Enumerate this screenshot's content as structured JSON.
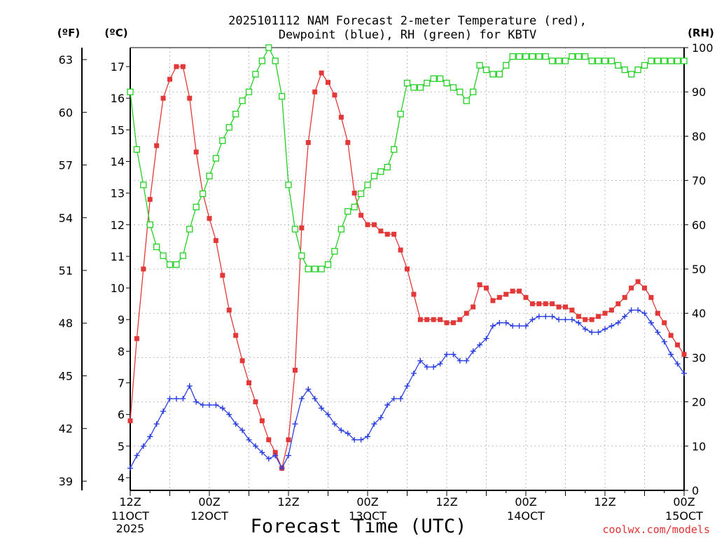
{
  "chart_data": {
    "type": "line",
    "title_line1": "2025101112 NAM Forecast 2-meter Temperature (red),",
    "title_line2": "Dewpoint (blue), RH (green) for KBTV",
    "xlabel": "Forecast Time (UTC)",
    "credit": "coolwx.com/models",
    "units": {
      "fahrenheit": "(ºF)",
      "celsius": "(ºC)",
      "rh": "(RH)"
    },
    "x_ticks": [
      {
        "hour": 0,
        "line1": "12Z",
        "line2": "11OCT",
        "line3": "2025"
      },
      {
        "hour": 12,
        "line1": "00Z",
        "line2": "12OCT",
        "line3": ""
      },
      {
        "hour": 24,
        "line1": "12Z",
        "line2": "",
        "line3": ""
      },
      {
        "hour": 36,
        "line1": "00Z",
        "line2": "13OCT",
        "line3": ""
      },
      {
        "hour": 48,
        "line1": "12Z",
        "line2": "",
        "line3": ""
      },
      {
        "hour": 60,
        "line1": "00Z",
        "line2": "14OCT",
        "line3": ""
      },
      {
        "hour": 72,
        "line1": "12Z",
        "line2": "",
        "line3": ""
      },
      {
        "hour": 84,
        "line1": "00Z",
        "line2": "15OCT",
        "line3": ""
      }
    ],
    "xlim": [
      0,
      84
    ],
    "ylim_celsius": [
      3.6,
      17.6
    ],
    "ylim_rh": [
      0,
      100
    ],
    "celsius_ticks": [
      "4",
      "5",
      "6",
      "7",
      "8",
      "9",
      "10",
      "11",
      "12",
      "13",
      "14",
      "15",
      "16",
      "17"
    ],
    "fahrenheit_ticks": [
      "39",
      "42",
      "45",
      "48",
      "51",
      "54",
      "57",
      "60",
      "63"
    ],
    "rh_ticks": [
      "0",
      "10",
      "20",
      "30",
      "40",
      "50",
      "60",
      "70",
      "80",
      "90",
      "100"
    ],
    "grid": true,
    "series": [
      {
        "name": "Temperature",
        "unit": "C",
        "color": "#e23838",
        "marker": "filled-square",
        "values": [
          5.8,
          8.4,
          10.6,
          12.8,
          14.5,
          16.0,
          16.6,
          17.0,
          17.0,
          16.0,
          14.3,
          13.0,
          12.2,
          11.5,
          10.4,
          9.3,
          8.5,
          7.7,
          7.0,
          6.4,
          5.8,
          5.2,
          4.8,
          4.3,
          5.2,
          7.4,
          11.9,
          14.6,
          16.2,
          16.8,
          16.5,
          16.1,
          15.4,
          14.6,
          13.0,
          12.3,
          12.0,
          12.0,
          11.8,
          11.7,
          11.7,
          11.2,
          10.6,
          9.8,
          9.0,
          9.0,
          9.0,
          9.0,
          8.9,
          8.9,
          9.0,
          9.2,
          9.4,
          10.1,
          10.0,
          9.6,
          9.7,
          9.8,
          9.9,
          9.9,
          9.7,
          9.5,
          9.5,
          9.5,
          9.5,
          9.4,
          9.4,
          9.3,
          9.1,
          9.0,
          9.0,
          9.1,
          9.2,
          9.3,
          9.5,
          9.7,
          10.0,
          10.2,
          10.0,
          9.7,
          9.2,
          8.9,
          8.5,
          8.2,
          7.9
        ]
      },
      {
        "name": "Dewpoint",
        "unit": "C",
        "color": "#2a3fe0",
        "marker": "plus",
        "values": [
          4.3,
          4.7,
          5.0,
          5.3,
          5.7,
          6.1,
          6.5,
          6.5,
          6.5,
          6.9,
          6.4,
          6.3,
          6.3,
          6.3,
          6.2,
          6.0,
          5.7,
          5.5,
          5.2,
          5.0,
          4.8,
          4.6,
          4.7,
          4.3,
          4.7,
          5.7,
          6.5,
          6.8,
          6.5,
          6.2,
          6.0,
          5.7,
          5.5,
          5.4,
          5.2,
          5.2,
          5.3,
          5.7,
          5.9,
          6.3,
          6.5,
          6.5,
          6.9,
          7.3,
          7.7,
          7.5,
          7.5,
          7.6,
          7.9,
          7.9,
          7.7,
          7.7,
          8.0,
          8.2,
          8.4,
          8.8,
          8.9,
          8.9,
          8.8,
          8.8,
          8.8,
          9.0,
          9.1,
          9.1,
          9.1,
          9.0,
          9.0,
          9.0,
          8.9,
          8.7,
          8.6,
          8.6,
          8.7,
          8.8,
          8.9,
          9.1,
          9.3,
          9.3,
          9.2,
          8.9,
          8.6,
          8.3,
          7.9,
          7.6,
          7.3
        ]
      },
      {
        "name": "RH",
        "unit": "%",
        "color": "#22d022",
        "marker": "open-square",
        "values": [
          90,
          77,
          69,
          60,
          55,
          53,
          51,
          51,
          53,
          59,
          64,
          67,
          71,
          75,
          79,
          82,
          85,
          88,
          90,
          94,
          97,
          100,
          97,
          89,
          69,
          59,
          53,
          50,
          50,
          50,
          51,
          54,
          59,
          63,
          64,
          67,
          69,
          71,
          72,
          73,
          77,
          85,
          92,
          91,
          91,
          92,
          93,
          93,
          92,
          91,
          90,
          88,
          90,
          96,
          95,
          94,
          94,
          96,
          98,
          98,
          98,
          98,
          98,
          98,
          97,
          97,
          97,
          98,
          98,
          98,
          97,
          97,
          97,
          97,
          96,
          95,
          94,
          95,
          96,
          97,
          97,
          97,
          97,
          97,
          97
        ]
      }
    ]
  }
}
